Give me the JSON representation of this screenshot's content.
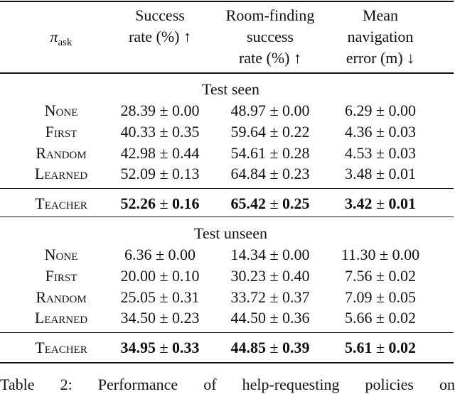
{
  "header": {
    "symbol": "π",
    "subscript": "ask",
    "columns": [
      [
        "Success",
        "rate (%) ↑"
      ],
      [
        "Room-finding",
        "success",
        "rate (%) ↑"
      ],
      [
        "Mean",
        "navigation",
        "error (m) ↓"
      ]
    ]
  },
  "sections": [
    {
      "title": "Test seen",
      "rows": [
        [
          "None",
          "28.39 ± 0.00",
          "48.97 ± 0.00",
          "6.29 ± 0.00"
        ],
        [
          "First",
          "40.33 ± 0.35",
          "59.64 ± 0.22",
          "4.36 ± 0.03"
        ],
        [
          "Random",
          "42.98 ± 0.44",
          "54.61 ± 0.28",
          "4.53 ± 0.03"
        ],
        [
          "Learned",
          "52.09 ± 0.13",
          "64.84 ± 0.23",
          "3.48 ± 0.01"
        ]
      ],
      "best": {
        "name": "Teacher",
        "cells": [
          {
            "mean": "52.26",
            "pm": "±",
            "sd": "0.16"
          },
          {
            "mean": "65.42",
            "pm": "±",
            "sd": "0.25"
          },
          {
            "mean": "3.42",
            "pm": "±",
            "sd": "0.01"
          }
        ]
      }
    },
    {
      "title": "Test unseen",
      "rows": [
        [
          "None",
          "6.36 ± 0.00",
          "14.34 ± 0.00",
          "11.30 ± 0.00"
        ],
        [
          "First",
          "20.00 ± 0.10",
          "30.23 ± 0.40",
          "7.56 ± 0.02"
        ],
        [
          "Random",
          "25.05 ± 0.31",
          "33.72 ± 0.37",
          "7.09 ± 0.05"
        ],
        [
          "Learned",
          "34.50 ± 0.23",
          "44.50 ± 0.36",
          "5.66 ± 0.02"
        ]
      ],
      "best": {
        "name": "Teacher",
        "cells": [
          {
            "mean": "34.95",
            "pm": "±",
            "sd": "0.33"
          },
          {
            "mean": "44.85",
            "pm": "±",
            "sd": "0.39"
          },
          {
            "mean": "5.61",
            "pm": "±",
            "sd": "0.02"
          }
        ]
      }
    }
  ],
  "caption": "Table 2: Performance of help-requesting policies on"
}
